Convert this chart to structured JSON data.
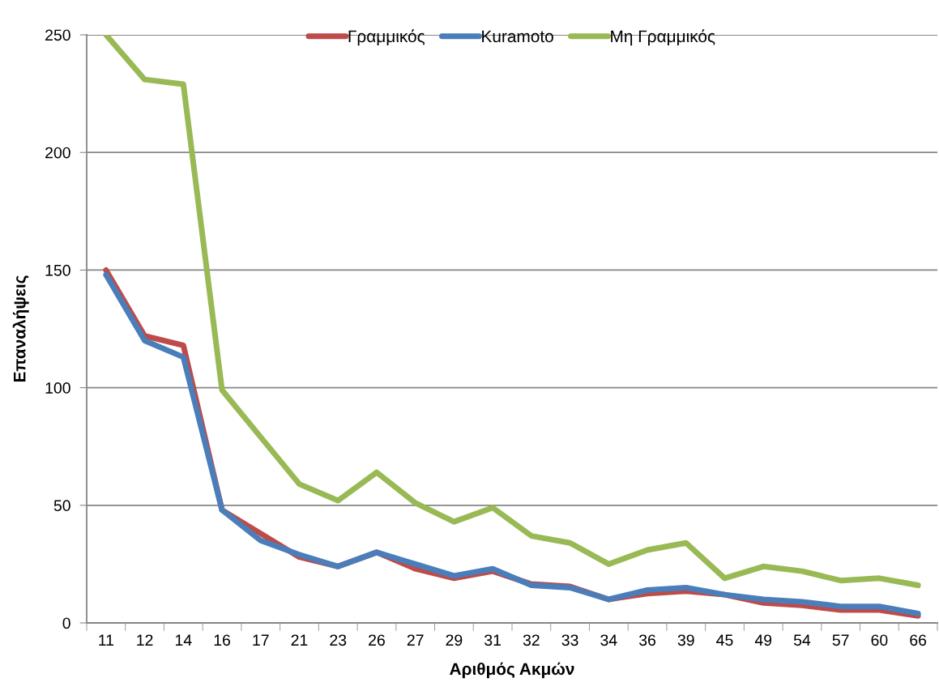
{
  "chart_data": {
    "type": "line",
    "xlabel": "Αριθμός Ακμών",
    "ylabel": "Επαναλήψεις",
    "categories": [
      "11",
      "12",
      "14",
      "16",
      "17",
      "21",
      "23",
      "26",
      "27",
      "29",
      "31",
      "32",
      "33",
      "34",
      "36",
      "39",
      "45",
      "49",
      "54",
      "57",
      "60",
      "66"
    ],
    "series": [
      {
        "name": "Γραμμικός",
        "color": "#be4b48",
        "values": [
          150,
          122,
          118,
          48,
          38,
          28,
          24,
          30,
          23,
          19,
          22,
          16.5,
          15.5,
          10,
          12.5,
          13.5,
          12,
          8.5,
          7.5,
          5.5,
          5.5,
          3
        ]
      },
      {
        "name": "Kuramoto",
        "color": "#4a7ebb",
        "values": [
          148,
          120,
          113,
          48,
          35,
          29,
          24,
          30,
          25,
          20,
          23,
          16,
          15,
          10,
          14,
          15,
          12,
          10,
          9,
          7,
          7,
          4
        ]
      },
      {
        "name": "Μη Γραμμικός",
        "color": "#98b954",
        "values": [
          250,
          231,
          229,
          99,
          79,
          59,
          52,
          64,
          51,
          43,
          49,
          37,
          34,
          25,
          31,
          34,
          19,
          24,
          22,
          18,
          19,
          16
        ]
      }
    ],
    "ylim": [
      0,
      250
    ],
    "yticks": [
      0,
      50,
      100,
      150,
      200,
      250
    ],
    "grid": "y",
    "legend": "top",
    "marker": "none",
    "line_style": "solid"
  }
}
